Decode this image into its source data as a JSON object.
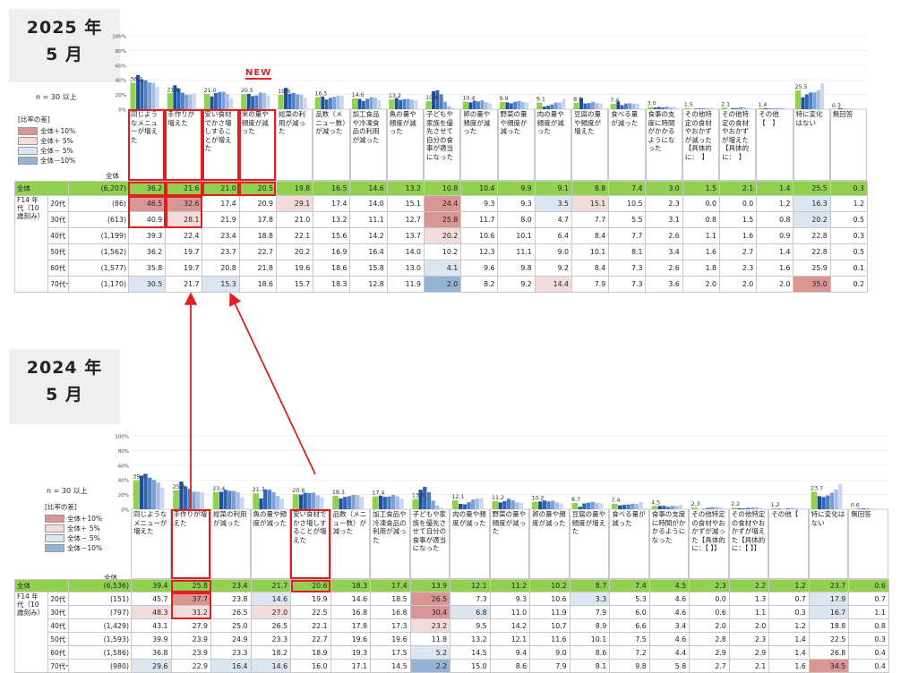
{
  "sections": [
    {
      "year_line1": "2025 年",
      "year_line2": "5 月",
      "note": "n = 30 以上",
      "new_tag": "NEW",
      "base_header": "全体",
      "ytick_labels": [
        "0%",
        "20%",
        "40%",
        "60%",
        "80%",
        "100%"
      ],
      "questions": [
        "同じようなメニューが増えた",
        "手作りが増えた",
        "安い食材でかさ増しすることが増えた",
        "米の量や頻度が減った",
        "総菜の利用が減った",
        "品数（メニュー数）が減った",
        "加工食品や冷凍食品の利用が減った",
        "魚の量や頻度が減った",
        "子どもや家族を優先させて自分の食事が適当になった",
        "卵の量や頻度が減った",
        "野菜の量や頻度が減った",
        "肉の量や頻度が減った",
        "豆腐の量や頻度が増えた",
        "食べる量が減った",
        "食事の支度に時間がかかるようになった",
        "その他特定の食材やおかずが減った【具体的に：　】",
        "その他特定の食材やおかずが増えた【具体的に：　】",
        "その他【　】",
        "特に変化はない",
        "無回答"
      ],
      "rows": [
        {
          "g1": "全体",
          "g2": "",
          "base": "(6,207)",
          "values": [
            36.2,
            21.6,
            21.0,
            20.5,
            19.8,
            16.5,
            14.6,
            13.2,
            10.8,
            10.4,
            9.9,
            9.1,
            8.8,
            7.4,
            3.0,
            1.5,
            2.1,
            1.4,
            25.5,
            0.3
          ],
          "hl": []
        },
        {
          "g1": "F14 年代（10歳刻み）",
          "g2": "20代",
          "base": "(86)",
          "values": [
            46.5,
            32.6,
            17.4,
            20.9,
            29.1,
            17.4,
            14.0,
            15.1,
            24.4,
            9.3,
            9.3,
            3.5,
            15.1,
            10.5,
            2.3,
            0.0,
            0.0,
            1.2,
            16.3,
            1.2
          ],
          "hl": [
            "p10",
            "p10",
            "",
            "",
            "p5",
            "",
            "",
            "",
            "p10",
            "",
            "",
            "m5",
            "p5",
            "",
            "",
            "",
            "",
            "",
            "m5",
            ""
          ]
        },
        {
          "g1": "",
          "g2": "30代",
          "base": "(613)",
          "values": [
            40.9,
            28.1,
            21.9,
            17.8,
            21.0,
            13.2,
            11.1,
            12.7,
            25.8,
            11.7,
            8.0,
            4.7,
            7.7,
            5.5,
            3.1,
            0.8,
            1.5,
            0.8,
            20.2,
            0.5
          ],
          "hl": [
            "",
            "p5",
            "",
            "",
            "",
            "",
            "",
            "",
            "p10",
            "",
            "",
            "",
            "",
            "",
            "",
            "",
            "",
            "",
            "m5",
            ""
          ]
        },
        {
          "g1": "",
          "g2": "40代",
          "base": "(1,199)",
          "values": [
            39.3,
            22.4,
            23.4,
            18.8,
            22.1,
            15.6,
            14.2,
            13.7,
            20.2,
            10.6,
            10.1,
            6.4,
            8.4,
            7.7,
            2.6,
            1.1,
            1.6,
            0.9,
            22.8,
            0.3
          ],
          "hl": [
            "",
            "",
            "",
            "",
            "",
            "",
            "",
            "",
            "p5",
            "",
            "",
            "",
            "",
            "",
            "",
            "",
            "",
            "",
            "",
            ""
          ]
        },
        {
          "g1": "",
          "g2": "50代",
          "base": "(1,562)",
          "values": [
            36.2,
            19.7,
            23.7,
            22.7,
            20.2,
            16.9,
            16.4,
            14.0,
            10.2,
            12.3,
            11.1,
            9.0,
            10.1,
            8.1,
            3.4,
            1.6,
            2.7,
            1.4,
            22.8,
            0.5
          ],
          "hl": []
        },
        {
          "g1": "",
          "g2": "60代",
          "base": "(1,577)",
          "values": [
            35.8,
            19.7,
            20.8,
            21.8,
            19.6,
            18.6,
            15.8,
            13.0,
            4.1,
            9.6,
            9.8,
            9.2,
            8.4,
            7.3,
            2.6,
            1.8,
            2.3,
            1.6,
            25.9,
            0.1
          ],
          "hl": [
            "",
            "",
            "",
            "",
            "",
            "",
            "",
            "",
            "m5",
            "",
            "",
            "",
            "",
            "",
            "",
            "",
            "",
            "",
            "",
            ""
          ]
        },
        {
          "g1": "",
          "g2": "70代～",
          "base": "(1,170)",
          "values": [
            30.5,
            21.7,
            15.3,
            18.6,
            15.7,
            18.3,
            12.8,
            11.9,
            2.0,
            8.2,
            9.2,
            14.4,
            7.9,
            7.3,
            3.6,
            2.0,
            2.0,
            2.0,
            35.0,
            0.2
          ],
          "hl": [
            "m5",
            "",
            "m5",
            "",
            "",
            "",
            "",
            "",
            "m10",
            "",
            "",
            "p5",
            "",
            "",
            "",
            "",
            "",
            "",
            "p10",
            ""
          ]
        }
      ]
    },
    {
      "year_line1": "2024 年",
      "year_line2": "5 月",
      "note": "n = 30 以上",
      "base_header": "全体",
      "ytick_labels": [
        "0%",
        "20%",
        "40%",
        "60%",
        "80%",
        "100%"
      ],
      "questions": [
        "同じようなメニューが増えた",
        "手作りが増えた",
        "総菜の利用が減った",
        "魚の量や頻度が減った",
        "安い食材でかさ増しすることが増えた",
        "品数（メニュー数）が減った",
        "加工食品や冷凍食品の利用が減った",
        "子どもや家族を優先させて自分の食事が適当になった",
        "肉の量や頻度が減った",
        "野菜の量や頻度が減った",
        "卵の量や頻度が減った",
        "豆腐の量や頻度が増えた",
        "食べる量が減った",
        "食事の支度に時間がかかるようになった",
        "その他特定の食材やおかずが減った【具体的に：【 】】",
        "その他特定の食材やおかずが増えた【具体的に：【 】】",
        "その他【",
        "特に変化はない",
        "無回答"
      ],
      "rows": [
        {
          "g1": "全体",
          "g2": "",
          "base": "(6,536)",
          "values": [
            39.4,
            25.8,
            23.4,
            21.7,
            20.6,
            18.3,
            17.4,
            13.9,
            12.1,
            11.2,
            10.2,
            8.7,
            7.4,
            4.5,
            2.3,
            2.2,
            1.2,
            23.7,
            0.6
          ],
          "hl": []
        },
        {
          "g1": "F14 年代（10歳刻み）",
          "g2": "20代",
          "base": "(151)",
          "values": [
            45.7,
            37.7,
            23.8,
            14.6,
            19.9,
            14.6,
            18.5,
            26.5,
            7.3,
            9.3,
            10.6,
            3.3,
            5.3,
            4.6,
            0.0,
            1.3,
            0.7,
            17.9,
            0.7
          ],
          "hl": [
            "",
            "p10",
            "",
            "m5",
            "",
            "",
            "",
            "p10",
            "",
            "",
            "",
            "m5",
            "",
            "",
            "",
            "",
            "",
            "m5",
            ""
          ]
        },
        {
          "g1": "",
          "g2": "30代",
          "base": "(797)",
          "values": [
            48.3,
            31.2,
            26.5,
            27.0,
            22.5,
            16.8,
            16.8,
            30.4,
            6.8,
            11.0,
            11.9,
            7.9,
            6.0,
            4.6,
            0.6,
            1.1,
            0.3,
            16.7,
            1.1
          ],
          "hl": [
            "p5",
            "p5",
            "",
            "p5",
            "",
            "",
            "",
            "p10",
            "m5",
            "",
            "",
            "",
            "",
            "",
            "",
            "",
            "",
            "m5",
            ""
          ]
        },
        {
          "g1": "",
          "g2": "40代",
          "base": "(1,429)",
          "values": [
            43.1,
            27.9,
            25.0,
            26.5,
            22.1,
            17.8,
            17.3,
            23.2,
            9.5,
            14.2,
            10.7,
            8.9,
            6.6,
            3.4,
            2.0,
            2.0,
            1.2,
            18.8,
            0.8
          ],
          "hl": [
            "",
            "",
            "",
            "",
            "",
            "",
            "",
            "p5",
            "",
            "",
            "",
            "",
            "",
            "",
            "",
            "",
            "",
            "",
            ""
          ]
        },
        {
          "g1": "",
          "g2": "50代",
          "base": "(1,593)",
          "values": [
            39.9,
            23.9,
            24.9,
            23.3,
            22.7,
            19.6,
            19.6,
            11.8,
            13.2,
            12.1,
            11.6,
            10.1,
            7.5,
            4.6,
            2.8,
            2.3,
            1.4,
            22.5,
            0.3
          ],
          "hl": []
        },
        {
          "g1": "",
          "g2": "60代",
          "base": "(1,586)",
          "values": [
            36.8,
            23.9,
            23.3,
            18.2,
            18.9,
            19.3,
            17.5,
            5.2,
            14.5,
            9.4,
            9.0,
            8.6,
            7.2,
            4.4,
            2.9,
            2.9,
            1.4,
            26.8,
            0.4
          ],
          "hl": [
            "",
            "",
            "",
            "",
            "",
            "",
            "",
            "m5",
            "",
            "",
            "",
            "",
            "",
            "",
            "",
            "",
            "",
            "",
            ""
          ]
        },
        {
          "g1": "",
          "g2": "70代～",
          "base": "(980)",
          "values": [
            29.6,
            22.9,
            16.4,
            14.6,
            16.0,
            17.1,
            14.5,
            2.2,
            15.0,
            8.6,
            7.9,
            8.1,
            9.8,
            5.8,
            2.7,
            2.1,
            1.6,
            34.5,
            0.4
          ],
          "hl": [
            "m5",
            "",
            "m5",
            "m5",
            "",
            "",
            "",
            "m10",
            "",
            "",
            "",
            "",
            "",
            "",
            "",
            "",
            "",
            "p10",
            ""
          ]
        }
      ]
    }
  ],
  "legend": {
    "title": "[比率の差]",
    "items": [
      "全体＋10%",
      "全体＋ 5%",
      "全体－ 5%",
      "全体－10%"
    ],
    "colors": [
      "#d99694",
      "#f2dcdb",
      "#dce6f1",
      "#95b3d7"
    ]
  },
  "series_colors": [
    "#92d050",
    "#1f4e99",
    "#2e64b0",
    "#4f7fc4",
    "#7d9fd4",
    "#a8bde3",
    "#cbd7ef"
  ],
  "chart_data": [
    {
      "type": "bar",
      "title": "2025 年 5 月",
      "ylim": [
        0,
        100
      ],
      "categories": [
        "同じようなメニューが増えた",
        "手作りが増えた",
        "安い食材でかさ増しすることが増えた",
        "米の量や頻度が減った",
        "総菜の利用が減った",
        "品数（メニュー数）が減った",
        "加工食品や冷凍食品の利用が減った",
        "魚の量や頻度が減った",
        "子どもや家族を優先させて自分の食事が適当になった",
        "卵の量や頻度が減った",
        "野菜の量や頻度が減った",
        "肉の量や頻度が減った",
        "豆腐の量や頻度が増えた",
        "食べる量が減った",
        "食事の支度に時間がかかるようになった",
        "その他特定の食材やおかずが減った【具体的に：　】",
        "その他特定の食材やおかずが増えた【具体的に：　】",
        "その他【　】",
        "特に変化はない",
        "無回答"
      ],
      "series": [
        {
          "name": "全体",
          "values": [
            36.2,
            21.6,
            21.0,
            20.5,
            19.8,
            16.5,
            14.6,
            13.2,
            10.8,
            10.4,
            9.9,
            9.1,
            8.8,
            7.4,
            3.0,
            1.5,
            2.1,
            1.4,
            25.5,
            0.3
          ]
        },
        {
          "name": "20代",
          "values": [
            46.5,
            32.6,
            17.4,
            20.9,
            29.1,
            17.4,
            14.0,
            15.1,
            24.4,
            9.3,
            9.3,
            3.5,
            15.1,
            10.5,
            2.3,
            0.0,
            0.0,
            1.2,
            16.3,
            1.2
          ]
        },
        {
          "name": "30代",
          "values": [
            40.9,
            28.1,
            21.9,
            17.8,
            21.0,
            13.2,
            11.1,
            12.7,
            25.8,
            11.7,
            8.0,
            4.7,
            7.7,
            5.5,
            3.1,
            0.8,
            1.5,
            0.8,
            20.2,
            0.5
          ]
        },
        {
          "name": "40代",
          "values": [
            39.3,
            22.4,
            23.4,
            18.8,
            22.1,
            15.6,
            14.2,
            13.7,
            20.2,
            10.6,
            10.1,
            6.4,
            8.4,
            7.7,
            2.6,
            1.1,
            1.6,
            0.9,
            22.8,
            0.3
          ]
        },
        {
          "name": "50代",
          "values": [
            36.2,
            19.7,
            23.7,
            22.7,
            20.2,
            16.9,
            16.4,
            14.0,
            10.2,
            12.3,
            11.1,
            9.0,
            10.1,
            8.1,
            3.4,
            1.6,
            2.7,
            1.4,
            22.8,
            0.5
          ]
        },
        {
          "name": "60代",
          "values": [
            35.8,
            19.7,
            20.8,
            21.8,
            19.6,
            18.6,
            15.8,
            13.0,
            4.1,
            9.6,
            9.8,
            9.2,
            8.4,
            7.3,
            2.6,
            1.8,
            2.3,
            1.6,
            25.9,
            0.1
          ]
        },
        {
          "name": "70代～",
          "values": [
            30.5,
            21.7,
            15.3,
            18.6,
            15.7,
            18.3,
            12.8,
            11.9,
            2.0,
            8.2,
            9.2,
            14.4,
            7.9,
            7.3,
            3.6,
            2.0,
            2.0,
            2.0,
            35.0,
            0.2
          ]
        }
      ]
    },
    {
      "type": "bar",
      "title": "2024 年 5 月",
      "ylim": [
        0,
        100
      ],
      "categories": [
        "同じようなメニューが増えた",
        "手作りが増えた",
        "総菜の利用が減った",
        "魚の量や頻度が減った",
        "安い食材でかさ増しすることが増えた",
        "品数（メニュー数）が減った",
        "加工食品や冷凍食品の利用が減った",
        "子どもや家族を優先させて自分の食事が適当になった",
        "肉の量や頻度が減った",
        "野菜の量や頻度が減った",
        "卵の量や頻度が減った",
        "豆腐の量や頻度が増えた",
        "食べる量が減った",
        "食事の支度に時間がかかるようになった",
        "その他特定の食材やおかずが減った【具体的に：【 】】",
        "その他特定の食材やおかずが増えた【具体的に：【 】】",
        "その他【",
        "特に変化はない",
        "無回答"
      ],
      "series": [
        {
          "name": "全体",
          "values": [
            39.4,
            25.8,
            23.4,
            21.7,
            20.6,
            18.3,
            17.4,
            13.9,
            12.1,
            11.2,
            10.2,
            8.7,
            7.4,
            4.5,
            2.3,
            2.2,
            1.2,
            23.7,
            0.6
          ]
        },
        {
          "name": "20代",
          "values": [
            45.7,
            37.7,
            23.8,
            14.6,
            19.9,
            14.6,
            18.5,
            26.5,
            7.3,
            9.3,
            10.6,
            3.3,
            5.3,
            4.6,
            0.0,
            1.3,
            0.7,
            17.9,
            0.7
          ]
        },
        {
          "name": "30代",
          "values": [
            48.3,
            31.2,
            26.5,
            27.0,
            22.5,
            16.8,
            16.8,
            30.4,
            6.8,
            11.0,
            11.9,
            7.9,
            6.0,
            4.6,
            0.6,
            1.1,
            0.3,
            16.7,
            1.1
          ]
        },
        {
          "name": "40代",
          "values": [
            43.1,
            27.9,
            25.0,
            26.5,
            22.1,
            17.8,
            17.3,
            23.2,
            9.5,
            14.2,
            10.7,
            8.9,
            6.6,
            3.4,
            2.0,
            2.0,
            1.2,
            18.8,
            0.8
          ]
        },
        {
          "name": "50代",
          "values": [
            39.9,
            23.9,
            24.9,
            23.3,
            22.7,
            19.6,
            19.6,
            11.8,
            13.2,
            12.1,
            11.6,
            10.1,
            7.5,
            4.6,
            2.8,
            2.3,
            1.4,
            22.5,
            0.3
          ]
        },
        {
          "name": "60代",
          "values": [
            36.8,
            23.9,
            23.3,
            18.2,
            18.9,
            19.3,
            17.5,
            5.2,
            14.5,
            9.4,
            9.0,
            8.6,
            7.2,
            4.4,
            2.9,
            2.9,
            1.4,
            26.8,
            0.4
          ]
        },
        {
          "name": "70代～",
          "values": [
            29.6,
            22.9,
            16.4,
            14.6,
            16.0,
            17.1,
            14.5,
            2.2,
            15.0,
            8.6,
            7.9,
            8.1,
            9.8,
            5.8,
            2.7,
            2.1,
            1.6,
            34.5,
            0.4
          ]
        }
      ]
    }
  ]
}
